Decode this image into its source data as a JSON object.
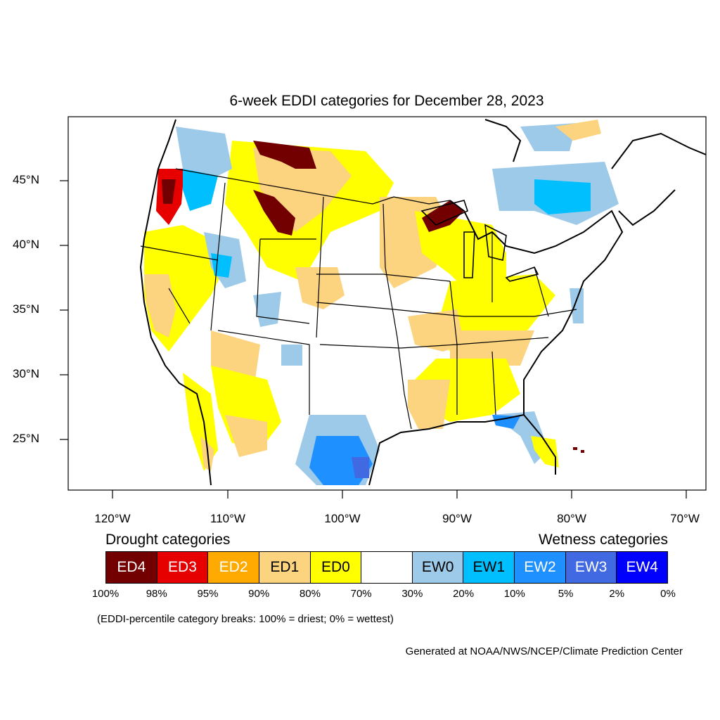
{
  "title": "6-week EDDI categories for December 28, 2023",
  "lat_labels": [
    "45°N",
    "40°N",
    "35°N",
    "30°N",
    "25°N"
  ],
  "lon_labels": [
    "120°W",
    "110°W",
    "100°W",
    "90°W",
    "80°W",
    "70°W"
  ],
  "legend": {
    "drought_heading": "Drought categories",
    "wetness_heading": "Wetness categories",
    "categories": [
      {
        "label": "ED4",
        "color": "#730000",
        "text_color": "#ffffff"
      },
      {
        "label": "ED3",
        "color": "#e60000",
        "text_color": "#ffffff"
      },
      {
        "label": "ED2",
        "color": "#ffaa00",
        "text_color": "#ffffff"
      },
      {
        "label": "ED1",
        "color": "#fcd37f",
        "text_color": "#000000"
      },
      {
        "label": "ED0",
        "color": "#ffff00",
        "text_color": "#000000"
      },
      {
        "label": "",
        "color": "#ffffff",
        "text_color": "#000000"
      },
      {
        "label": "EW0",
        "color": "#9ecae9",
        "text_color": "#000000"
      },
      {
        "label": "EW1",
        "color": "#00bfff",
        "text_color": "#000000"
      },
      {
        "label": "EW2",
        "color": "#1e90ff",
        "text_color": "#ffffff"
      },
      {
        "label": "EW3",
        "color": "#4169e1",
        "text_color": "#ffffff"
      },
      {
        "label": "EW4",
        "color": "#0000ff",
        "text_color": "#ffffff"
      }
    ],
    "percentiles": [
      "100%",
      "98%",
      "95%",
      "90%",
      "80%",
      "70%",
      "30%",
      "20%",
      "10%",
      "5%",
      "2%",
      "0%"
    ]
  },
  "note": "(EDDI-percentile category breaks: 100% = driest; 0% = wettest)",
  "credit": "Generated at NOAA/NWS/NCEP/Climate Prediction Center"
}
